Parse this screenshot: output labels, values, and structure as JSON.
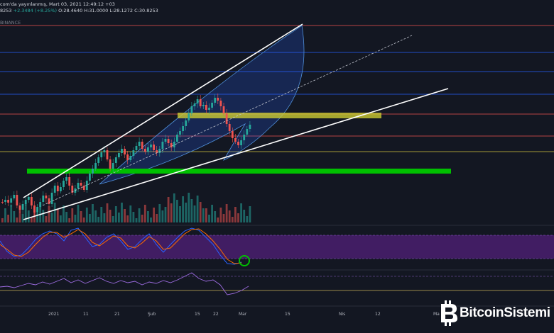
{
  "header": {
    "published": "com'da yayınlanmış, Mart 03, 2021 12:49:12 +03",
    "ohlc_prefix": "8253",
    "change": "+2.3484 (+8.25%)",
    "open": "O:28.4640",
    "high": "H:31.0000",
    "low": "L:28.1272",
    "close": "C:30.8253",
    "exchange": "BINANCE"
  },
  "xaxis": {
    "labels": [
      "2021",
      "11",
      "21",
      "Şub",
      "15",
      "22",
      "Mar",
      "15",
      "Nis",
      "12",
      "Ma"
    ]
  },
  "watermark": {
    "brand": "BitcoinSistemi",
    "icon": "bitcoin-icon"
  },
  "colors": {
    "background": "#131722",
    "up": "#26a69a",
    "down": "#ef5350",
    "trendline": "#ffffff",
    "support_zone": "#00c000",
    "resistance_zone": "#cccc33",
    "oscillator_band": "#4a1f6e",
    "horizontal_red": "#ef5350",
    "horizontal_blue": "#2962ff"
  }
}
